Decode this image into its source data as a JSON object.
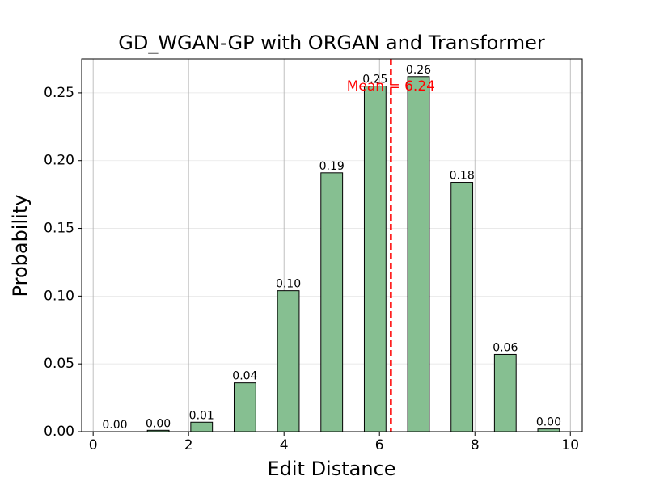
{
  "chart_data": {
    "type": "histogram",
    "title": "GD_WGAN-GP with ORGAN and Transformer",
    "xlabel": "Edit Distance",
    "ylabel": "Probability",
    "bins": [
      0,
      0.909,
      1.818,
      2.727,
      3.636,
      4.545,
      5.455,
      6.364,
      7.273,
      8.182,
      9.091,
      10
    ],
    "values": [
      0.0,
      0.001,
      0.007,
      0.036,
      0.104,
      0.191,
      0.255,
      0.262,
      0.184,
      0.057,
      0.002
    ],
    "value_labels": [
      "0.00",
      "0.00",
      "0.01",
      "0.04",
      "0.10",
      "0.19",
      "0.25",
      "0.26",
      "0.18",
      "0.06",
      "0.00"
    ],
    "color": "#86bf91",
    "mean": 6.24,
    "mean_label": "Mean = 6.24",
    "mean_color": "#ff0000",
    "xlim": [
      -0.24,
      10.25
    ],
    "ylim": [
      0,
      0.275
    ],
    "xticks": [
      0,
      2,
      4,
      6,
      8,
      10
    ],
    "yticks": [
      {
        "value": 0,
        "label": "0.00"
      },
      {
        "value": 0.05,
        "label": "0.05"
      },
      {
        "value": 0.1,
        "label": "0.10"
      },
      {
        "value": 0.15,
        "label": "0.15"
      },
      {
        "value": 0.2,
        "label": "0.20"
      },
      {
        "value": 0.25,
        "label": "0.25"
      }
    ],
    "grid": true
  }
}
